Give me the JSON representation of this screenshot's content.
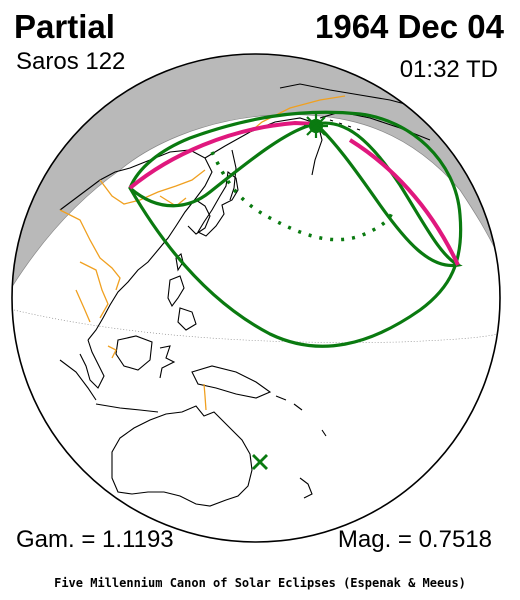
{
  "header": {
    "eclipse_type": "Partial",
    "saros": "Saros 122",
    "date": "1964 Dec 04",
    "time": "01:32 TD"
  },
  "parameters": {
    "gamma": "Gam. = 1.1193",
    "magnitude": "Mag. = 0.7518"
  },
  "footer": {
    "credit": "Five Millennium Canon of Solar Eclipses (Espenak & Meeus)"
  },
  "colors": {
    "globe_outline": "#000000",
    "night_shading": "#b9b9b9",
    "penumbra_limits": "#0a7a10",
    "max_eclipse_line": "#e0187e",
    "country_borders": "#f0a020",
    "coastlines": "#000000",
    "antipodal_marker": "#0a7a10"
  },
  "markers": {
    "greatest_eclipse_icon": "sun-star-icon",
    "antipode_icon": "x-mark-icon"
  }
}
